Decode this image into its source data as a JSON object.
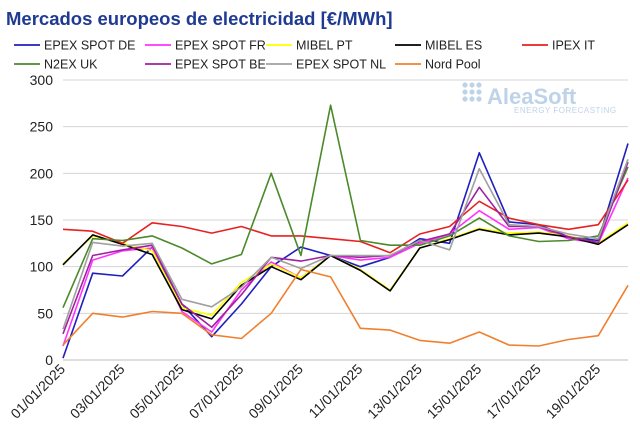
{
  "title": "Mercados europeos de electricidad [€/MWh]",
  "watermark": {
    "brand": "AleaSoft",
    "tagline": "ENERGY FORECASTING",
    "color": "#bfd3e8"
  },
  "chart_data": {
    "type": "line",
    "title": "Mercados europeos de electricidad [€/MWh]",
    "ylim": [
      0,
      300
    ],
    "yticks": [
      0,
      50,
      100,
      150,
      200,
      250,
      300
    ],
    "grid": "horizontal",
    "legend": "top",
    "x": [
      "01/01/2025",
      "02/01/2025",
      "03/01/2025",
      "04/01/2025",
      "05/01/2025",
      "06/01/2025",
      "07/01/2025",
      "08/01/2025",
      "09/01/2025",
      "10/01/2025",
      "11/01/2025",
      "12/01/2025",
      "13/01/2025",
      "14/01/2025",
      "15/01/2025",
      "16/01/2025",
      "17/01/2025",
      "18/01/2025",
      "19/01/2025",
      "20/01/2025"
    ],
    "xtick_labels": [
      "01/01/2025",
      "03/01/2025",
      "05/01/2025",
      "07/01/2025",
      "09/01/2025",
      "11/01/2025",
      "13/01/2025",
      "15/01/2025",
      "17/01/2025",
      "19/01/2025"
    ],
    "series": [
      {
        "name": "EPEX SPOT DE",
        "color": "#1f1fbf",
        "values": [
          2,
          93,
          90,
          121,
          60,
          25,
          60,
          100,
          121,
          112,
          100,
          110,
          130,
          125,
          222,
          148,
          145,
          132,
          128,
          232
        ]
      },
      {
        "name": "EPEX SPOT FR",
        "color": "#ff33ff",
        "values": [
          15,
          107,
          117,
          120,
          52,
          30,
          75,
          105,
          88,
          112,
          107,
          110,
          125,
          135,
          160,
          140,
          142,
          130,
          125,
          195
        ]
      },
      {
        "name": "MIBEL PT",
        "color": "#ffff00",
        "values": [
          103,
          133,
          125,
          117,
          56,
          48,
          83,
          103,
          88,
          112,
          97,
          75,
          120,
          130,
          141,
          136,
          137,
          133,
          125,
          147
        ]
      },
      {
        "name": "MIBEL ES",
        "color": "#000000",
        "values": [
          102,
          134,
          124,
          113,
          54,
          44,
          80,
          100,
          86,
          112,
          96,
          74,
          120,
          129,
          140,
          134,
          136,
          132,
          124,
          145
        ]
      },
      {
        "name": "IPEX IT",
        "color": "#e82020",
        "values": [
          140,
          138,
          125,
          147,
          143,
          136,
          143,
          133,
          133,
          130,
          127,
          115,
          135,
          143,
          170,
          152,
          145,
          140,
          145,
          193
        ]
      },
      {
        "name": "N2EX UK",
        "color": "#4a8a2a",
        "values": [
          56,
          130,
          128,
          133,
          120,
          103,
          113,
          200,
          112,
          273,
          128,
          123,
          123,
          133,
          152,
          133,
          127,
          128,
          133,
          207
        ]
      },
      {
        "name": "EPEX SPOT BE",
        "color": "#a020a0",
        "values": [
          28,
          112,
          118,
          123,
          60,
          35,
          70,
          110,
          106,
          112,
          110,
          112,
          127,
          135,
          185,
          143,
          143,
          132,
          126,
          212
        ]
      },
      {
        "name": "EPEX SPOT NL",
        "color": "#a0a0a0",
        "values": [
          33,
          126,
          122,
          125,
          65,
          57,
          78,
          110,
          98,
          112,
          112,
          112,
          128,
          118,
          205,
          145,
          143,
          135,
          130,
          215
        ]
      },
      {
        "name": "Nord Pool",
        "color": "#f08030",
        "values": [
          16,
          50,
          46,
          52,
          50,
          27,
          23,
          50,
          97,
          89,
          34,
          32,
          21,
          18,
          30,
          16,
          15,
          22,
          26,
          80
        ]
      }
    ]
  }
}
